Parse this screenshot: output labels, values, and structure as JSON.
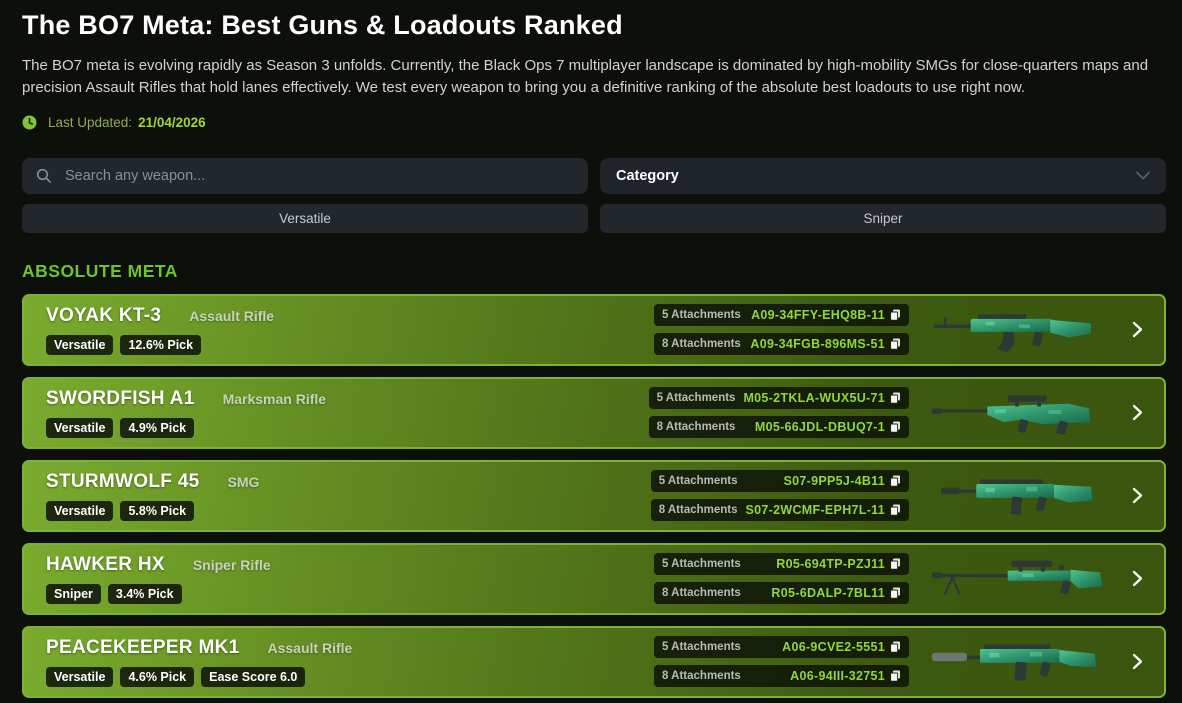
{
  "page": {
    "title": "The BO7 Meta: Best Guns & Loadouts Ranked",
    "description": "The BO7 meta is evolving rapidly as Season 3 unfolds. Currently, the Black Ops 7 multiplayer landscape is dominated by high-mobility SMGs for close-quarters maps and precision Assault Rifles that hold lanes effectively. We test every weapon to bring you a definitive ranking of the absolute best loadouts to use right now.",
    "last_updated_label": "Last Updated:",
    "last_updated_date": "21/04/2026"
  },
  "filters": {
    "search_placeholder": "Search any weapon...",
    "category_label": "Category",
    "quick_filters": [
      "Versatile",
      "Sniper"
    ]
  },
  "section": {
    "heading": "ABSOLUTE META"
  },
  "weapons": [
    {
      "name": "VOYAK KT-3",
      "type": "Assault Rifle",
      "badges": [
        "Versatile",
        "12.6% Pick"
      ],
      "silhouette": "ak-rifle",
      "loadouts": [
        {
          "label": "5 Attachments",
          "code": "A09-34FFY-EHQ8B-11"
        },
        {
          "label": "8 Attachments",
          "code": "A09-34FGB-896MS-51"
        }
      ]
    },
    {
      "name": "SWORDFISH A1",
      "type": "Marksman Rifle",
      "badges": [
        "Versatile",
        "4.9% Pick"
      ],
      "silhouette": "bullpup-dmr",
      "loadouts": [
        {
          "label": "5 Attachments",
          "code": "M05-2TKLA-WUX5U-71"
        },
        {
          "label": "8 Attachments",
          "code": "M05-66JDL-DBUQ7-1"
        }
      ]
    },
    {
      "name": "STURMWOLF 45",
      "type": "SMG",
      "badges": [
        "Versatile",
        "5.8% Pick"
      ],
      "silhouette": "smg",
      "loadouts": [
        {
          "label": "5 Attachments",
          "code": "S07-9PP5J-4B11"
        },
        {
          "label": "8 Attachments",
          "code": "S07-2WCMF-EPH7L-11"
        }
      ]
    },
    {
      "name": "HAWKER HX",
      "type": "Sniper Rifle",
      "badges": [
        "Sniper",
        "3.4% Pick"
      ],
      "silhouette": "sniper",
      "loadouts": [
        {
          "label": "5 Attachments",
          "code": "R05-694TP-PZJ11"
        },
        {
          "label": "8 Attachments",
          "code": "R05-6DALP-7BL11"
        }
      ]
    },
    {
      "name": "PEACEKEEPER MK1",
      "type": "Assault Rifle",
      "badges": [
        "Versatile",
        "4.6% Pick",
        "Ease Score 6.0"
      ],
      "silhouette": "suppressed-ar",
      "loadouts": [
        {
          "label": "5 Attachments",
          "code": "A06-9CVE2-5551"
        },
        {
          "label": "8 Attachments",
          "code": "A06-94III-32751"
        }
      ]
    }
  ],
  "colors": {
    "page_bg": "#0d0f0b",
    "accent_green": "#6ec427",
    "date_green": "#a6d42c",
    "code_green": "#8ed83c",
    "card_gradient_start": "#7aab2e",
    "card_gradient_end": "#3a550e",
    "card_border": "#7db13a",
    "badge_bg": "#111609",
    "panel_bg": "#21272c"
  },
  "icons": {
    "clock-icon": "clock",
    "search-icon": "magnifier",
    "chevron-down-icon": "v",
    "copy-icon": "copy",
    "chevron-right-icon": ">"
  }
}
